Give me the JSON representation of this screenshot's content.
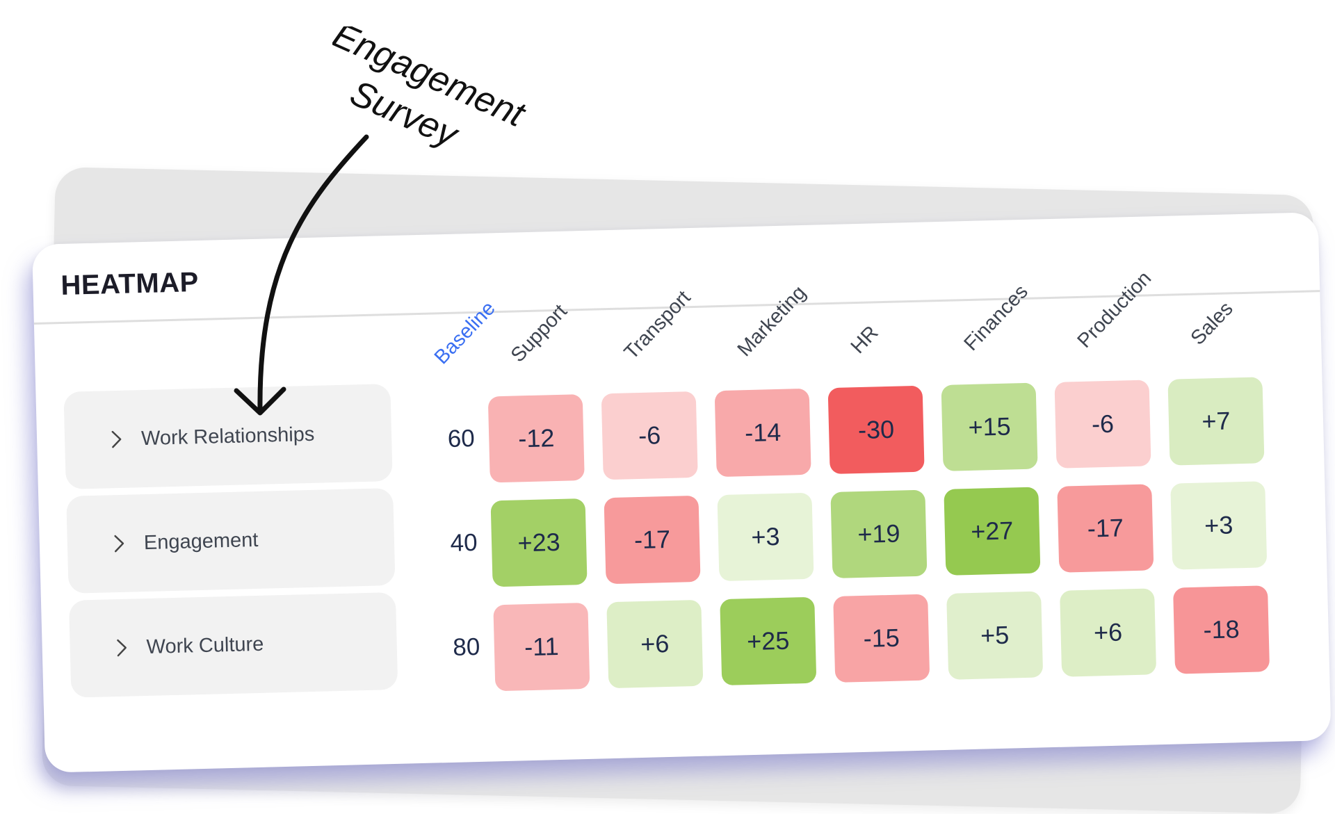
{
  "annotation": {
    "line1": "Engagement",
    "line2": "Survey"
  },
  "card": {
    "title": "HEATMAP"
  },
  "chart_data": {
    "type": "heatmap",
    "title": "HEATMAP",
    "baseline_label": "Baseline",
    "columns": [
      "Support",
      "Transport",
      "Marketing",
      "HR",
      "Finances",
      "Production",
      "Sales"
    ],
    "rows": [
      {
        "label": "Work Relationships",
        "baseline": 60,
        "values": [
          "-12",
          "-6",
          "-14",
          "-30",
          "+15",
          "-6",
          "+7"
        ]
      },
      {
        "label": "Engagement",
        "baseline": 40,
        "values": [
          "+23",
          "-17",
          "+3",
          "+19",
          "+27",
          "-17",
          "+3"
        ]
      },
      {
        "label": "Work Culture",
        "baseline": 80,
        "values": [
          "-11",
          "+6",
          "+25",
          "-15",
          "+5",
          "+6",
          "-18"
        ]
      }
    ],
    "color_scale": {
      "negative_max": "#f25c5e",
      "positive_max": "#8bc43f",
      "neutral": "#ffffff"
    }
  }
}
